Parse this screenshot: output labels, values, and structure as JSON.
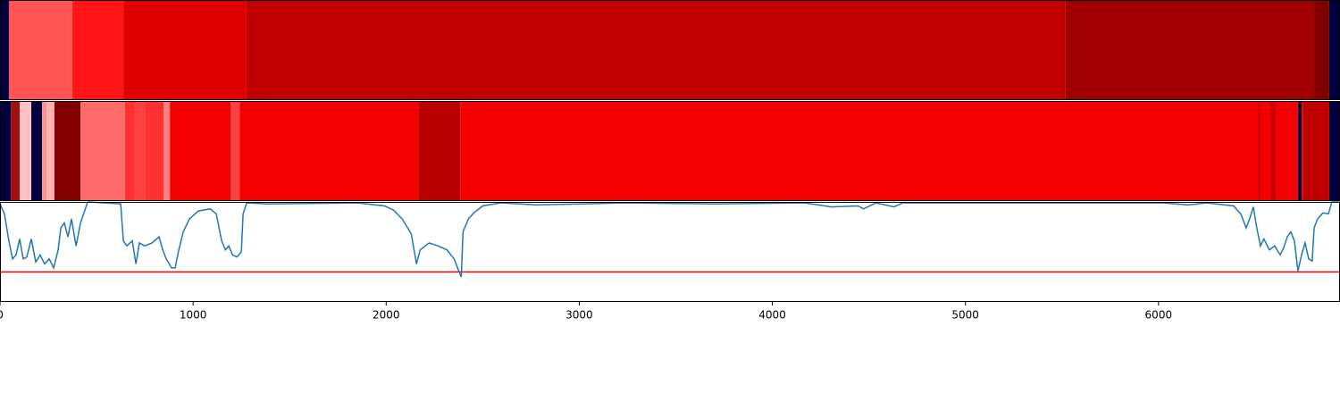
{
  "chart_data": [
    {
      "type": "segments",
      "xlim": [
        0,
        6940
      ],
      "segments": [
        {
          "start": 0,
          "end": 46,
          "color": "#000040"
        },
        {
          "start": 46,
          "end": 375,
          "color": "#ff5555"
        },
        {
          "start": 375,
          "end": 639,
          "color": "#ff1515"
        },
        {
          "start": 639,
          "end": 1273,
          "color": "#e00000"
        },
        {
          "start": 1273,
          "end": 5519,
          "color": "#c00000"
        },
        {
          "start": 5519,
          "end": 6806,
          "color": "#a00000"
        },
        {
          "start": 6806,
          "end": 6884,
          "color": "#800000"
        },
        {
          "start": 6884,
          "end": 6940,
          "color": "#000040"
        }
      ]
    },
    {
      "type": "segments",
      "xlim": [
        0,
        6940
      ],
      "segments": [
        {
          "start": 0,
          "end": 56,
          "color": "#000040"
        },
        {
          "start": 56,
          "end": 102,
          "color": "#a01010"
        },
        {
          "start": 102,
          "end": 162,
          "color": "#ffc0c0"
        },
        {
          "start": 162,
          "end": 218,
          "color": "#000040"
        },
        {
          "start": 218,
          "end": 241,
          "color": "#ff9090"
        },
        {
          "start": 241,
          "end": 282,
          "color": "#ffb0b0"
        },
        {
          "start": 282,
          "end": 417,
          "color": "#800000"
        },
        {
          "start": 417,
          "end": 648,
          "color": "#ff6a6a"
        },
        {
          "start": 648,
          "end": 694,
          "color": "#ff3030"
        },
        {
          "start": 694,
          "end": 750,
          "color": "#ff4040"
        },
        {
          "start": 750,
          "end": 847,
          "color": "#ff3030"
        },
        {
          "start": 847,
          "end": 880,
          "color": "#ff8080"
        },
        {
          "start": 880,
          "end": 1194,
          "color": "#f50000"
        },
        {
          "start": 1194,
          "end": 1241,
          "color": "#ff4040"
        },
        {
          "start": 1241,
          "end": 2167,
          "color": "#f50000"
        },
        {
          "start": 2167,
          "end": 2384,
          "color": "#b80000"
        },
        {
          "start": 2384,
          "end": 6519,
          "color": "#f50000"
        },
        {
          "start": 6519,
          "end": 6528,
          "color": "#c00000"
        },
        {
          "start": 6528,
          "end": 6579,
          "color": "#f50000"
        },
        {
          "start": 6579,
          "end": 6611,
          "color": "#d00000"
        },
        {
          "start": 6611,
          "end": 6722,
          "color": "#f50000"
        },
        {
          "start": 6722,
          "end": 6741,
          "color": "#000040"
        },
        {
          "start": 6741,
          "end": 6750,
          "color": "#f50000"
        },
        {
          "start": 6750,
          "end": 6884,
          "color": "#c00000"
        },
        {
          "start": 6884,
          "end": 6940,
          "color": "#000040"
        }
      ]
    },
    {
      "type": "line",
      "xlim": [
        0,
        6940
      ],
      "ylim": [
        0,
        1
      ],
      "xticks": [
        0,
        1000,
        2000,
        3000,
        4000,
        5000,
        6000
      ],
      "threshold": {
        "value": 0.3,
        "color": "#ff0000"
      },
      "series": [
        {
          "color": "#1f77b4",
          "x": [
            0,
            23,
            46,
            65,
            83,
            102,
            120,
            139,
            162,
            185,
            208,
            231,
            255,
            278,
            301,
            315,
            333,
            352,
            370,
            394,
            417,
            440,
            454,
            625,
            639,
            657,
            685,
            704,
            722,
            750,
            787,
            824,
            843,
            861,
            889,
            907,
            926,
            949,
            981,
            1028,
            1088,
            1120,
            1148,
            1167,
            1185,
            1204,
            1227,
            1250,
            1259,
            1278,
            1389,
            1852,
            1991,
            2037,
            2083,
            2130,
            2157,
            2176,
            2222,
            2269,
            2315,
            2352,
            2370,
            2389,
            2398,
            2426,
            2454,
            2500,
            2593,
            2778,
            3241,
            3704,
            4167,
            4306,
            4444,
            4472,
            4537,
            4630,
            4676,
            5093,
            5556,
            6019,
            6157,
            6250,
            6389,
            6426,
            6454,
            6472,
            6491,
            6509,
            6528,
            6546,
            6574,
            6602,
            6630,
            6648,
            6667,
            6685,
            6704,
            6722,
            6741,
            6759,
            6778,
            6796,
            6806,
            6824,
            6852,
            6880,
            6898,
            6940
          ],
          "values": [
            0.98,
            0.88,
            0.61,
            0.43,
            0.47,
            0.63,
            0.43,
            0.45,
            0.63,
            0.4,
            0.47,
            0.38,
            0.43,
            0.34,
            0.52,
            0.74,
            0.79,
            0.65,
            0.83,
            0.56,
            0.79,
            0.92,
            1.0,
            0.98,
            0.61,
            0.56,
            0.61,
            0.38,
            0.59,
            0.56,
            0.59,
            0.65,
            0.52,
            0.43,
            0.34,
            0.34,
            0.52,
            0.7,
            0.83,
            0.91,
            0.93,
            0.88,
            0.61,
            0.52,
            0.56,
            0.47,
            0.45,
            0.5,
            0.88,
            0.99,
            0.98,
            0.99,
            0.96,
            0.92,
            0.83,
            0.68,
            0.38,
            0.52,
            0.59,
            0.56,
            0.52,
            0.43,
            0.34,
            0.25,
            0.7,
            0.83,
            0.89,
            0.96,
            0.99,
            0.97,
            0.99,
            0.98,
            0.99,
            0.95,
            0.96,
            0.93,
            0.99,
            0.95,
            0.99,
            0.99,
            0.99,
            0.99,
            0.97,
            0.99,
            0.96,
            0.88,
            0.74,
            0.83,
            0.95,
            0.74,
            0.56,
            0.63,
            0.52,
            0.56,
            0.47,
            0.54,
            0.65,
            0.7,
            0.61,
            0.31,
            0.47,
            0.59,
            0.43,
            0.41,
            0.74,
            0.83,
            0.89,
            0.88,
            1.0,
            1.0
          ]
        }
      ]
    }
  ]
}
